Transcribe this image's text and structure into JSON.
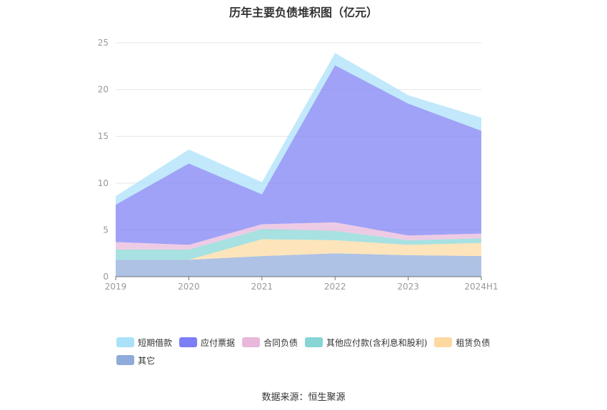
{
  "chart_data": {
    "type": "area",
    "stacked": true,
    "title": "历年主要负债堆积图（亿元）",
    "x": [
      "2019",
      "2020",
      "2021",
      "2022",
      "2023",
      "2024H1"
    ],
    "ylim": [
      0,
      25
    ],
    "yticks": [
      0,
      5,
      10,
      15,
      20,
      25
    ],
    "grid": true,
    "legend_position": "bottom",
    "series": [
      {
        "name": "其它",
        "color": "#8eabd9",
        "values": [
          1.8,
          1.8,
          2.2,
          2.5,
          2.3,
          2.2
        ]
      },
      {
        "name": "租赁负债",
        "color": "#fdd9a0",
        "values": [
          0.0,
          0.0,
          1.8,
          1.4,
          1.1,
          1.4
        ]
      },
      {
        "name": "其他应付款(含利息和股利)",
        "color": "#87d5d5",
        "values": [
          1.1,
          1.1,
          1.1,
          1.0,
          0.5,
          0.5
        ]
      },
      {
        "name": "合同负债",
        "color": "#e8b7db",
        "values": [
          0.8,
          0.5,
          0.5,
          0.9,
          0.5,
          0.5
        ]
      },
      {
        "name": "应付票据",
        "color": "#7b7ef4",
        "values": [
          4.0,
          8.7,
          3.2,
          16.8,
          14.1,
          11.0
        ]
      },
      {
        "name": "短期借款",
        "color": "#a9e1f9",
        "values": [
          0.9,
          1.5,
          1.3,
          1.3,
          0.9,
          1.4
        ]
      }
    ],
    "source": "数据来源：恒生聚源"
  }
}
